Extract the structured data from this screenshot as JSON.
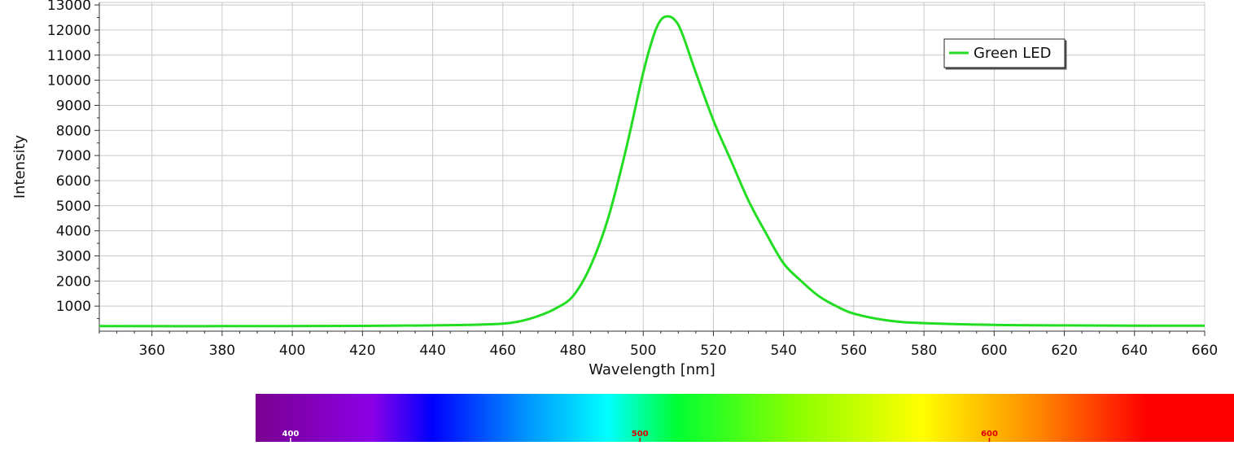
{
  "chart_data": {
    "type": "line",
    "title": "",
    "xlabel": "Wavelength [nm]",
    "ylabel": "Intensity",
    "xlim": [
      345,
      660
    ],
    "ylim": [
      0,
      13100
    ],
    "x_ticks": [
      360,
      380,
      400,
      420,
      440,
      460,
      480,
      500,
      520,
      540,
      560,
      580,
      600,
      620,
      640,
      660
    ],
    "y_ticks": [
      1000,
      2000,
      3000,
      4000,
      5000,
      6000,
      7000,
      8000,
      9000,
      10000,
      11000,
      12000,
      13000
    ],
    "grid": true,
    "legend_position": "top-right",
    "series": [
      {
        "name": "Green LED",
        "color": "#22dd22",
        "x": [
          345,
          380,
          420,
          440,
          450,
          460,
          465,
          470,
          475,
          480,
          485,
          490,
          495,
          500,
          503,
          505,
          507,
          509,
          511,
          515,
          520,
          525,
          530,
          535,
          540,
          545,
          550,
          555,
          560,
          570,
          580,
          600,
          620,
          640,
          660
        ],
        "y": [
          200,
          200,
          210,
          230,
          250,
          300,
          400,
          600,
          900,
          1400,
          2600,
          4500,
          7200,
          10300,
          11800,
          12400,
          12550,
          12400,
          11900,
          10300,
          8400,
          6800,
          5200,
          3900,
          2700,
          2000,
          1400,
          1000,
          700,
          420,
          320,
          250,
          230,
          220,
          220
        ]
      }
    ]
  },
  "spectrum_bar": {
    "labels": [
      "400",
      "500",
      "600"
    ],
    "label_wavelengths": [
      400,
      500,
      600
    ],
    "range_nm": [
      390,
      670
    ]
  }
}
